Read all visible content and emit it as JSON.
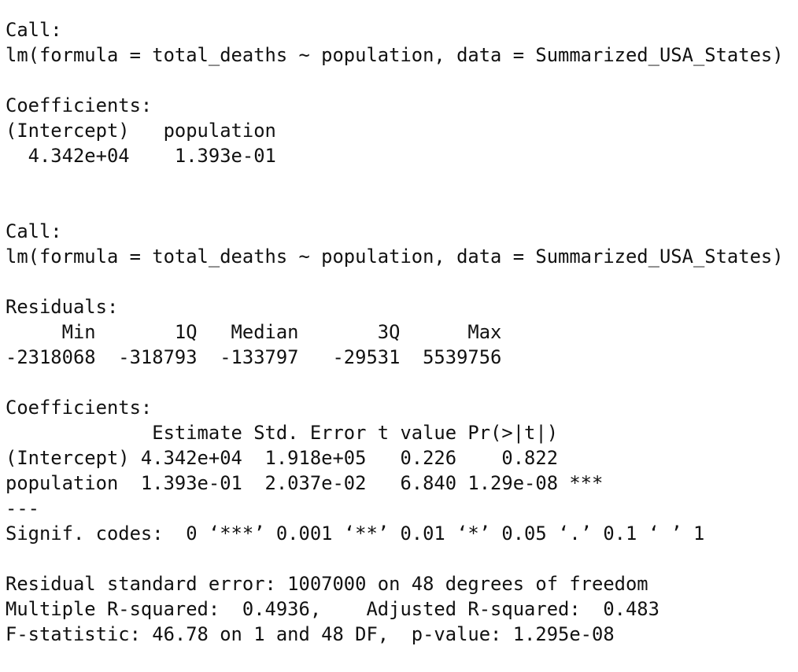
{
  "blocks": [
    {
      "lines": [
        "Call:",
        "lm(formula = total_deaths ~ population, data = Summarized_USA_States)"
      ]
    },
    {
      "lines": [
        "Coefficients:",
        "(Intercept)   population",
        "  4.342e+04    1.393e-01"
      ]
    },
    {
      "lines": [
        "Call:",
        "lm(formula = total_deaths ~ population, data = Summarized_USA_States)"
      ]
    },
    {
      "lines": [
        "Residuals:",
        "     Min       1Q   Median       3Q      Max",
        "-2318068  -318793  -133797   -29531  5539756"
      ]
    },
    {
      "lines": [
        "Coefficients:",
        "             Estimate Std. Error t value Pr(>|t|)",
        "(Intercept) 4.342e+04  1.918e+05   0.226    0.822",
        "population  1.393e-01  2.037e-02   6.840 1.29e-08 ***",
        "---",
        "Signif. codes:  0 ‘***’ 0.001 ‘**’ 0.01 ‘*’ 0.05 ‘.’ 0.1 ‘ ’ 1"
      ]
    },
    {
      "lines": [
        "Residual standard error: 1007000 on 48 degrees of freedom",
        "Multiple R-squared:  0.4936,    Adjusted R-squared:  0.483",
        "F-statistic: 46.78 on 1 and 48 DF,  p-value: 1.295e-08"
      ]
    }
  ]
}
